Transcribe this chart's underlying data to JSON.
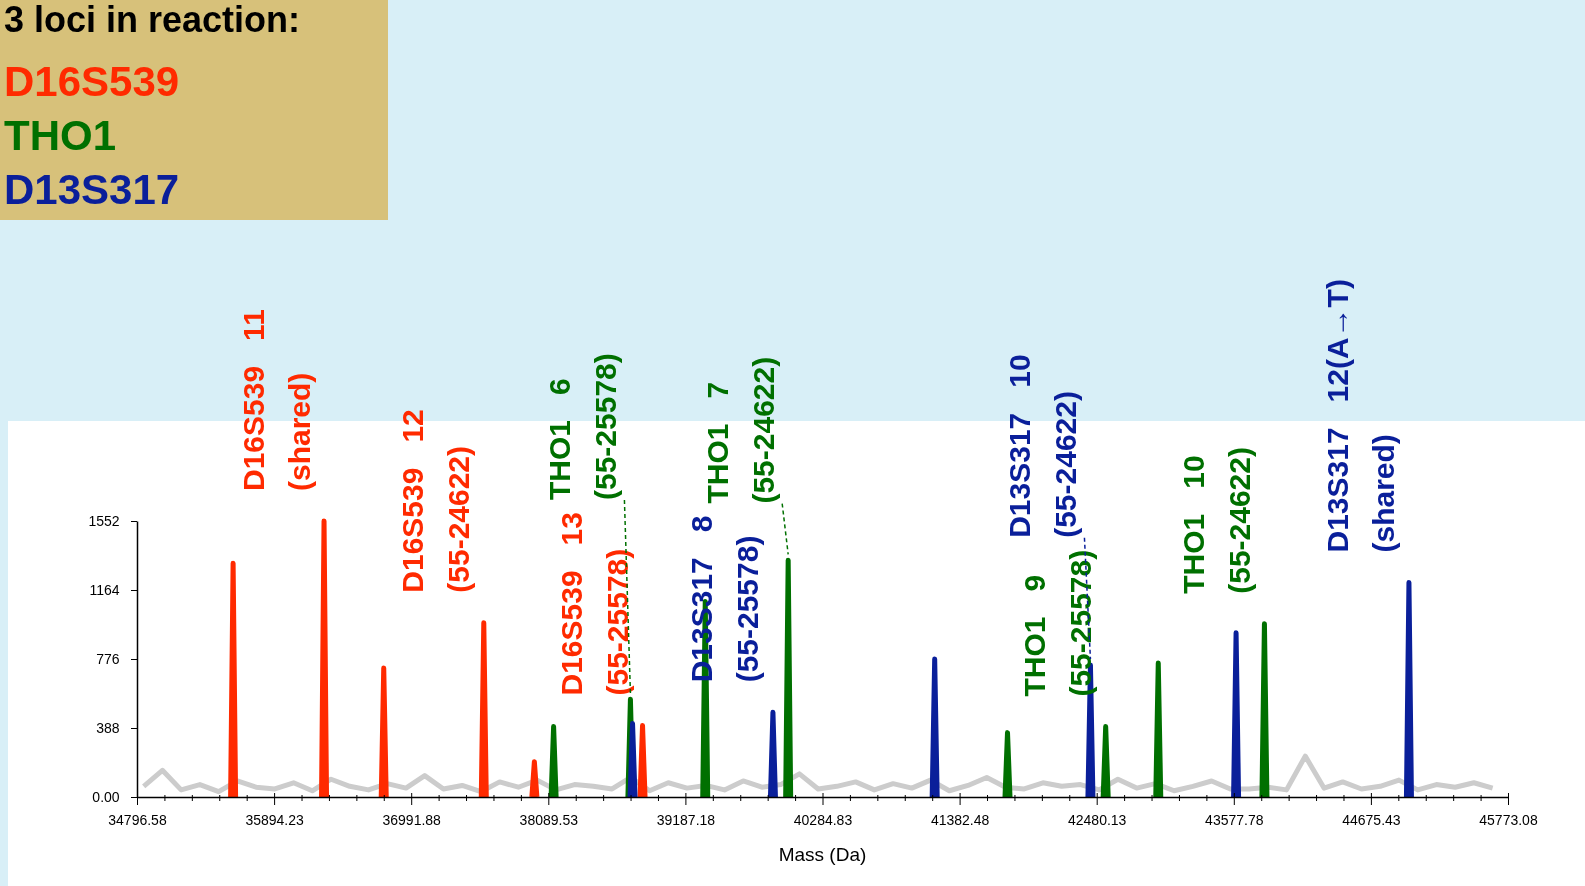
{
  "chart_data": {
    "type": "line",
    "xlabel": "Mass (Da)",
    "legend_title": "3 loci in reaction:",
    "legend": "top left",
    "xlim": [
      34796.58,
      45773.08
    ],
    "ylim": [
      0,
      1552
    ],
    "xticks": [
      34796.58,
      {
        "value": 35016.11,
        "label": null
      },
      {
        "value": 35235.64,
        "label": null
      },
      {
        "value": 35455.17,
        "label": null
      },
      {
        "value": 35674.7,
        "label": null
      },
      35894.23,
      {
        "value": 36113.76,
        "label": null
      },
      {
        "value": 36333.29,
        "label": null
      },
      {
        "value": 36552.82,
        "label": null
      },
      {
        "value": 36772.35,
        "label": null
      },
      36991.88,
      {
        "value": 37211.41,
        "label": null
      },
      {
        "value": 37430.94,
        "label": null
      },
      {
        "value": 37650.47,
        "label": null
      },
      {
        "value": 37870.0,
        "label": null
      },
      38089.53,
      {
        "value": 38309.06,
        "label": null
      },
      {
        "value": 38528.59,
        "label": null
      },
      {
        "value": 38748.12,
        "label": null
      },
      {
        "value": 38967.65,
        "label": null
      },
      39187.18,
      {
        "value": 39406.71,
        "label": null
      },
      {
        "value": 39626.24,
        "label": null
      },
      {
        "value": 39845.77,
        "label": null
      },
      {
        "value": 40065.3,
        "label": null
      },
      40284.83,
      {
        "value": 40504.36,
        "label": null
      },
      {
        "value": 40723.89,
        "label": null
      },
      {
        "value": 40943.42,
        "label": null
      },
      {
        "value": 41162.95,
        "label": null
      },
      41382.48,
      {
        "value": 41602.01,
        "label": null
      },
      {
        "value": 41821.54,
        "label": null
      },
      {
        "value": 42041.07,
        "label": null
      },
      {
        "value": 42260.6,
        "label": null
      },
      42480.13,
      {
        "value": 42699.66,
        "label": null
      },
      {
        "value": 42919.19,
        "label": null
      },
      {
        "value": 43138.72,
        "label": null
      },
      {
        "value": 43358.25,
        "label": null
      },
      43577.78,
      {
        "value": 43797.31,
        "label": null
      },
      {
        "value": 44016.84,
        "label": null
      },
      {
        "value": 44236.37,
        "label": null
      },
      {
        "value": 44455.9,
        "label": null
      },
      44675.43,
      {
        "value": 44894.96,
        "label": null
      },
      {
        "value": 45114.49,
        "label": null
      },
      {
        "value": 45334.02,
        "label": null
      },
      {
        "value": 45553.55,
        "label": null
      },
      45773.08
    ],
    "yticks": [
      {
        "value": 0,
        "label": "0.00"
      },
      388,
      776,
      1164,
      1552
    ],
    "series": [
      {
        "color": "#cccccc",
        "x": [
          34850,
          35000,
          35150,
          35300,
          35450,
          35600,
          35750,
          35900,
          36050,
          36200,
          36350,
          36500,
          36650,
          36800,
          36950,
          37100,
          37250,
          37400,
          37550,
          37700,
          37850,
          38000,
          38150,
          38300,
          38450,
          38600,
          38750,
          38900,
          39050,
          39200,
          39350,
          39500,
          39650,
          39800,
          39950,
          40100,
          40250,
          40400,
          40550,
          40700,
          40850,
          41000,
          41150,
          41300,
          41450,
          41600,
          41750,
          41900,
          42050,
          42200,
          42350,
          42500,
          42650,
          42800,
          42950,
          43100,
          43250,
          43400,
          43550,
          43700,
          43850,
          44000,
          44150,
          44300,
          44450,
          44600,
          44750,
          44900,
          45050,
          45200,
          45350,
          45500,
          45650
        ],
        "values": [
          60,
          150,
          40,
          70,
          30,
          90,
          55,
          45,
          80,
          35,
          100,
          60,
          40,
          75,
          50,
          120,
          45,
          65,
          30,
          85,
          55,
          95,
          40,
          70,
          60,
          45,
          110,
          35,
          80,
          50,
          65,
          40,
          90,
          55,
          70,
          130,
          45,
          60,
          85,
          40,
          75,
          50,
          95,
          35,
          65,
          110,
          55,
          45,
          80,
          60,
          70,
          40,
          100,
          50,
          75,
          35,
          60,
          90,
          45,
          45,
          55,
          40,
          230,
          50,
          85,
          45,
          60,
          95,
          40,
          70,
          55,
          80,
          50
        ]
      },
      {
        "name": "D16S539",
        "color": "#ff2a00",
        "x": [
          35546,
          35566,
          35586,
          35587,
          36274,
          36294,
          36314,
          36315,
          36752,
          36772,
          36792,
          36793,
          37553,
          37573,
          37593,
          37594,
          37958,
          37978,
          37998,
          37999,
          38824,
          38844,
          38864
        ],
        "values": [
          0,
          1314,
          0,
          null,
          0,
          1552,
          0,
          null,
          0,
          725,
          0,
          null,
          0,
          980,
          0,
          null,
          0,
          198,
          0,
          null,
          0,
          402,
          0
        ]
      },
      {
        "name": "THO1",
        "color": "#007000",
        "x": [
          38112,
          38132,
          38152,
          38153,
          38727,
          38747,
          38767,
          38768,
          39326,
          39346,
          39366,
          39367,
          39990,
          40010,
          40030,
          40031,
          41746,
          41766,
          41786,
          41787,
          42532,
          42552,
          42572,
          42573,
          42953,
          42973,
          42993,
          42994,
          43803,
          43823,
          43843
        ],
        "values": [
          0,
          396,
          0,
          null,
          0,
          549,
          0,
          null,
          0,
          1099,
          0,
          null,
          0,
          1331,
          0,
          null,
          0,
          362,
          0,
          null,
          0,
          396,
          0,
          null,
          0,
          753,
          0,
          null,
          0,
          974,
          0
        ]
      },
      {
        "name": "D13S317",
        "color": "#0a1f9a",
        "x": [
          38744,
          38764,
          38784,
          38785,
          39868,
          39888,
          39908,
          39909,
          41163,
          41183,
          41203,
          41204,
          42410,
          42430,
          42450,
          42451,
          43576,
          43596,
          43616,
          43617,
          44960,
          44980,
          45000
        ],
        "values": [
          0,
          413,
          0,
          null,
          0,
          476,
          0,
          null,
          0,
          776,
          0,
          null,
          0,
          742,
          0,
          null,
          0,
          923,
          0,
          null,
          0,
          1206,
          0
        ]
      }
    ],
    "annotations": [
      {
        "text": "D16S539   11\n(shared)",
        "x": 36294,
        "y": 1552
      },
      {
        "text": "D16S539   12\n(55-24622)",
        "x": 37573,
        "y": 980
      },
      {
        "text": "D16S539   13\n(55-25578)",
        "x": 38844,
        "y": 402
      },
      {
        "text": "THO1   6\n(55-25578)",
        "x": 38747,
        "y": 549
      },
      {
        "text": "THO1   7\n(55-24622)",
        "x": 40010,
        "y": 1331
      },
      {
        "text": "THO1   9\n(55-25578)",
        "x": 42552,
        "y": 396
      },
      {
        "text": "THO1   10\n(55-24622)",
        "x": 43823,
        "y": 974
      },
      {
        "text": "D13S317   8\n(55-25578)",
        "x": 39888,
        "y": 476
      },
      {
        "text": "D13S317   10\n(55-24622)",
        "x": 42430,
        "y": 742
      },
      {
        "text": "D13S317   12(A→T)\n(shared)",
        "x": 44980,
        "y": 1206
      }
    ]
  }
}
